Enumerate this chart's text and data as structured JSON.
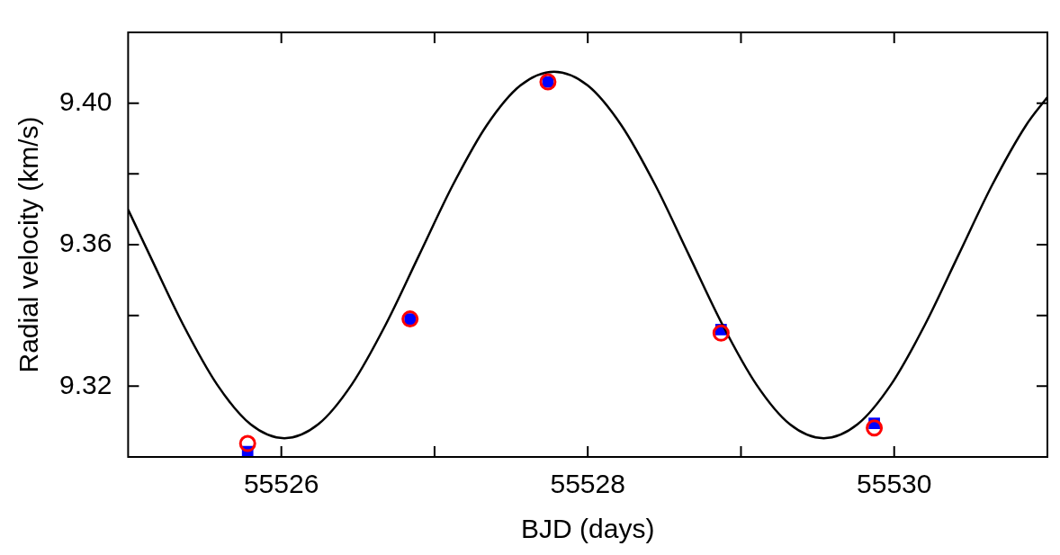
{
  "chart_data": {
    "type": "scatter",
    "xlabel": "BJD (days)",
    "ylabel": "Radial velocity (km/s)",
    "xlim": [
      55525,
      55531
    ],
    "xticks": [
      55526,
      {
        "value": 55527,
        "label": null
      },
      55528,
      {
        "value": 55529,
        "label": null
      },
      55530
    ],
    "ylim": [
      9.3,
      9.42
    ],
    "yticks": [
      9.32,
      {
        "value": 9.34,
        "label": null
      },
      9.36,
      {
        "value": 9.38,
        "label": null
      },
      {
        "value": 9.4,
        "label": "9.40"
      }
    ],
    "series": [
      {
        "type": "line",
        "color": "#000000",
        "marker": "none",
        "line_style": "solid",
        "x": [
          55525,
          55525.14,
          55525.36,
          55525.58,
          55525.8,
          55526.02,
          55526.24,
          55526.46,
          55526.68,
          55526.9,
          55527.12,
          55527.34,
          55527.56,
          55527.78,
          55528.0,
          55528.22,
          55528.44,
          55528.66,
          55528.88,
          55529.1,
          55529.32,
          55529.54,
          55529.76,
          55529.98,
          55530.2,
          55530.42,
          55530.64,
          55530.86,
          55531
        ],
        "values": [
          9.3699,
          9.3571,
          9.3373,
          9.3205,
          9.3092,
          9.3053,
          9.3092,
          9.3205,
          9.3373,
          9.3571,
          9.3769,
          9.3937,
          9.405,
          9.4089,
          9.405,
          9.3937,
          9.3769,
          9.3571,
          9.3373,
          9.3205,
          9.3092,
          9.3053,
          9.3092,
          9.3205,
          9.3373,
          9.3571,
          9.3769,
          9.3937,
          9.4017
        ]
      },
      {
        "type": "scatter",
        "color": "#0000ff",
        "marker": "square",
        "x": [
          55525.78,
          55526.84,
          55527.74,
          55528.87,
          55529.87
        ],
        "values": [
          9.3015,
          9.339,
          9.406,
          9.336,
          9.3095
        ]
      },
      {
        "type": "scatter",
        "color": "#ff0000",
        "marker": "circle",
        "x": [
          55525.78,
          55526.84,
          55527.74,
          55528.87,
          55529.87
        ],
        "values": [
          9.3038,
          9.339,
          9.406,
          9.335,
          9.3082
        ]
      }
    ]
  }
}
